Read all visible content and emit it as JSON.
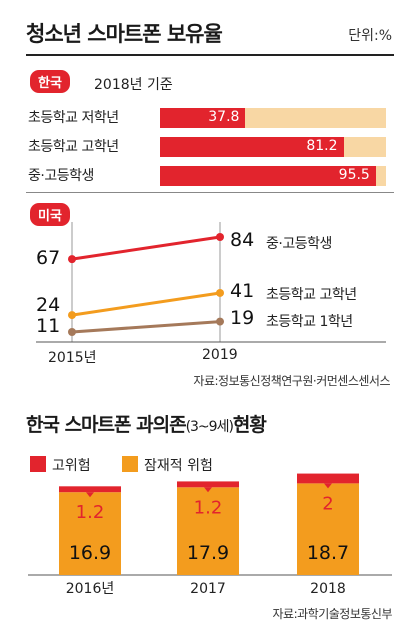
{
  "header": {
    "title": "청소년 스마트폰 보유율",
    "unit": "단위:%"
  },
  "korea": {
    "badge": "한국",
    "basis": "2018년 기준",
    "bars": [
      {
        "label": "초등학교 저학년",
        "value": 37.8,
        "display": "37.8"
      },
      {
        "label": "초등학교 고학년",
        "value": 81.2,
        "display": "81.2"
      },
      {
        "label": "중·고등학생",
        "value": 95.5,
        "display": "95.5"
      }
    ]
  },
  "usa": {
    "badge": "미국",
    "x_labels": [
      "2015년",
      "2019"
    ],
    "series": [
      {
        "name": "중·고등학생",
        "values": [
          67,
          84
        ],
        "color": "#e2242d"
      },
      {
        "name": "초등학교 고학년",
        "values": [
          24,
          41
        ],
        "color": "#f39c1e"
      },
      {
        "name": "초등학교 1학년",
        "values": [
          11,
          19
        ],
        "color": "#a5795a"
      }
    ]
  },
  "source1": "자료:정보통신정책연구원·커먼센스센서스",
  "section2": {
    "title": "한국 스마트폰 과의존",
    "title_sub": "(3~9세)",
    "title_tail": "현황",
    "legend": [
      {
        "name": "고위험",
        "color": "#e2242d"
      },
      {
        "name": "잠재적 위험",
        "color": "#f39c1e"
      }
    ]
  },
  "source2": "자료:과학기술정보통신부",
  "chart_data": [
    {
      "type": "bar",
      "title": "청소년 스마트폰 보유율",
      "subtitle": "한국 2018년 기준",
      "unit": "%",
      "categories": [
        "초등학교 저학년",
        "초등학교 고학년",
        "중·고등학생"
      ],
      "values": [
        37.8,
        81.2,
        95.5
      ],
      "xlim": [
        0,
        100
      ]
    },
    {
      "type": "line",
      "subtitle": "미국",
      "unit": "%",
      "x": [
        "2015년",
        "2019"
      ],
      "series": [
        {
          "name": "중·고등학생",
          "values": [
            67,
            84
          ]
        },
        {
          "name": "초등학교 고학년",
          "values": [
            24,
            41
          ]
        },
        {
          "name": "초등학교 1학년",
          "values": [
            11,
            19
          ]
        }
      ]
    },
    {
      "type": "bar",
      "stacked": true,
      "title": "한국 스마트폰 과의존(3~9세)현황",
      "categories": [
        "2016년",
        "2017",
        "2018"
      ],
      "series": [
        {
          "name": "잠재적 위험",
          "values": [
            16.9,
            17.9,
            18.7
          ],
          "labels": [
            "16.9",
            "17.9",
            "18.7"
          ]
        },
        {
          "name": "고위험",
          "values": [
            1.2,
            1.2,
            2
          ],
          "labels": [
            "1.2",
            "1.2",
            "2"
          ]
        }
      ]
    }
  ]
}
